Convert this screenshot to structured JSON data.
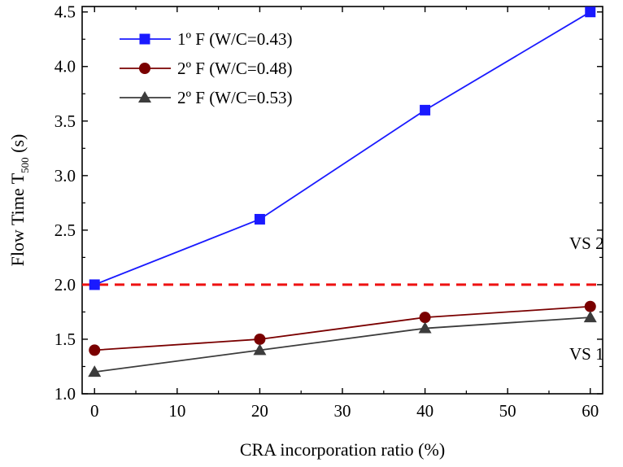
{
  "chart_data": {
    "type": "line",
    "xlabel": "CRA incorporation ratio (%)",
    "ylabel": {
      "main": "Flow Time T",
      "sub": "500",
      "unit": " (s)"
    },
    "xlim": [
      -1.5,
      61.5
    ],
    "ylim": [
      1.0,
      4.55
    ],
    "xticks": [
      "0",
      "10",
      "20",
      "30",
      "40",
      "50",
      "60"
    ],
    "yticks": [
      "1.0",
      "1.5",
      "2.0",
      "2.5",
      "3.0",
      "3.5",
      "4.0",
      "4.5"
    ],
    "grid": false,
    "legend_position": "top-left",
    "x": [
      0,
      20,
      40,
      60
    ],
    "series": [
      {
        "name": "1º F (W/C=0.43)",
        "values": [
          2.0,
          2.6,
          3.6,
          4.5
        ],
        "color": "#1a1aff",
        "marker": "square"
      },
      {
        "name": "2º F (W/C=0.48)",
        "values": [
          1.4,
          1.5,
          1.7,
          1.8
        ],
        "color": "#7a0000",
        "marker": "circle"
      },
      {
        "name": "2º F (W/C=0.53)",
        "values": [
          1.2,
          1.4,
          1.6,
          1.7
        ],
        "color": "#3c3c3c",
        "marker": "triangle"
      }
    ],
    "reference_line": {
      "y": 2.0,
      "color": "#ee1111",
      "style": "dashed"
    },
    "annotations": [
      "VS 2",
      "VS 1"
    ]
  }
}
